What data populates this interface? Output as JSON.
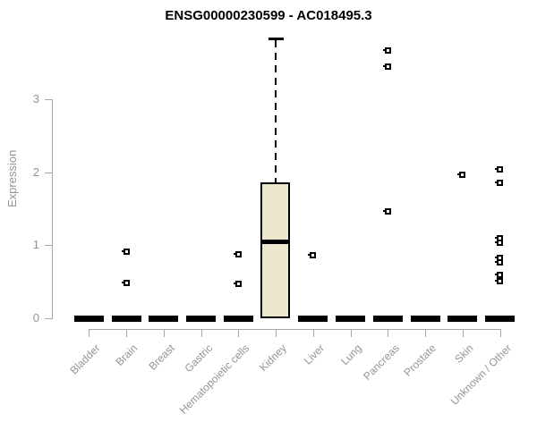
{
  "chart_data": {
    "type": "box",
    "title": "ENSG00000230599 - AC018495.3",
    "xlabel": "",
    "ylabel": "Expression",
    "yticks": [
      0,
      1,
      2,
      3
    ],
    "ylim": [
      0,
      3.9
    ],
    "grid": false,
    "legend": "none",
    "categories": [
      "Bladder",
      "Brain",
      "Breast",
      "Gastric",
      "Hematopoietic cells",
      "Kidney",
      "Liver",
      "Lung",
      "Pancreas",
      "Prostate",
      "Skin",
      "Unknown / Other"
    ],
    "boxes": [
      {
        "category": "Bladder",
        "q1": 0,
        "median": 0,
        "q3": 0,
        "whisker_low": 0,
        "whisker_high": 0,
        "outliers": []
      },
      {
        "category": "Brain",
        "q1": 0,
        "median": 0,
        "q3": 0,
        "whisker_low": 0,
        "whisker_high": 0,
        "outliers": [
          0.91,
          0.48
        ]
      },
      {
        "category": "Breast",
        "q1": 0,
        "median": 0,
        "q3": 0,
        "whisker_low": 0,
        "whisker_high": 0,
        "outliers": []
      },
      {
        "category": "Gastric",
        "q1": 0,
        "median": 0,
        "q3": 0,
        "whisker_low": 0,
        "whisker_high": 0,
        "outliers": []
      },
      {
        "category": "Hematopoietic cells",
        "q1": 0,
        "median": 0,
        "q3": 0,
        "whisker_low": 0,
        "whisker_high": 0,
        "outliers": [
          0.87,
          0.47
        ]
      },
      {
        "category": "Kidney",
        "q1": 0,
        "median": 1.05,
        "q3": 1.86,
        "whisker_low": 0,
        "whisker_high": 3.83,
        "outliers": []
      },
      {
        "category": "Liver",
        "q1": 0,
        "median": 0,
        "q3": 0,
        "whisker_low": 0,
        "whisker_high": 0,
        "outliers": [
          0.86
        ]
      },
      {
        "category": "Lung",
        "q1": 0,
        "median": 0,
        "q3": 0,
        "whisker_low": 0,
        "whisker_high": 0,
        "outliers": []
      },
      {
        "category": "Pancreas",
        "q1": 0,
        "median": 0,
        "q3": 0,
        "whisker_low": 0,
        "whisker_high": 0,
        "outliers": [
          3.67,
          3.45,
          1.46
        ]
      },
      {
        "category": "Prostate",
        "q1": 0,
        "median": 0,
        "q3": 0,
        "whisker_low": 0,
        "whisker_high": 0,
        "outliers": []
      },
      {
        "category": "Skin",
        "q1": 0,
        "median": 0,
        "q3": 0,
        "whisker_low": 0,
        "whisker_high": 0,
        "outliers": [
          1.96
        ]
      },
      {
        "category": "Unknown / Other",
        "q1": 0,
        "median": 0,
        "q3": 0,
        "whisker_low": 0,
        "whisker_high": 0,
        "outliers": [
          2.04,
          1.85,
          1.1,
          1.04,
          0.83,
          0.77,
          0.59,
          0.51
        ]
      }
    ],
    "colors": {
      "box_fill": "#EDE7CD",
      "box_border": "#000000",
      "median": "#000000",
      "whisker": "#000000",
      "outlier": "#000000",
      "axis_line": "#A6A6A6",
      "axis_text": "#949494",
      "title_text": "#000000"
    }
  }
}
